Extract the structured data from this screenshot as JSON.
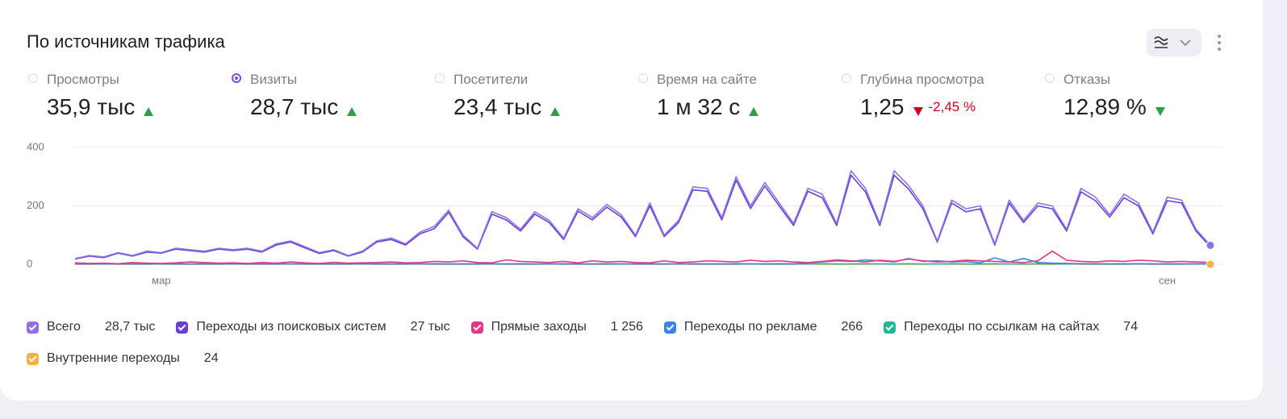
{
  "header": {
    "title": "По источникам трафика"
  },
  "metrics": [
    {
      "label": "Просмотры",
      "value": "35,9 тыс",
      "trend": "up",
      "trend_color": "#2ea043",
      "selected": false
    },
    {
      "label": "Визиты",
      "value": "28,7 тыс",
      "trend": "up",
      "trend_color": "#2ea043",
      "selected": true
    },
    {
      "label": "Посетители",
      "value": "23,4 тыс",
      "trend": "up",
      "trend_color": "#2ea043",
      "selected": false
    },
    {
      "label": "Время на сайте",
      "value": "1 м 32 с",
      "trend": "up",
      "trend_color": "#2ea043",
      "selected": false
    },
    {
      "label": "Глубина просмотра",
      "value": "1,25",
      "trend": "down",
      "trend_color": "#d0021b",
      "change": "-2,45 %",
      "selected": false
    },
    {
      "label": "Отказы",
      "value": "12,89 %",
      "trend": "down",
      "trend_color": "#2ea043",
      "selected": false
    }
  ],
  "chart_data": {
    "type": "line",
    "categories": [
      null,
      null,
      null,
      null,
      null,
      null,
      "мар",
      null,
      null,
      null,
      null,
      null,
      null,
      null,
      null,
      null,
      null,
      null,
      null,
      null,
      null,
      null,
      null,
      null,
      null,
      null,
      null,
      null,
      null,
      null,
      null,
      null,
      null,
      null,
      null,
      null,
      null,
      null,
      null,
      null,
      null,
      null,
      null,
      null,
      null,
      null,
      null,
      null,
      null,
      null,
      null,
      null,
      null,
      null,
      null,
      null,
      null,
      null,
      null,
      null,
      null,
      null,
      null,
      null,
      null,
      null,
      null,
      null,
      null,
      null,
      null,
      null,
      null,
      null,
      null,
      null,
      "сен",
      null,
      null,
      null
    ],
    "ylim": [
      0,
      400
    ],
    "yticks": [
      0,
      200,
      400
    ],
    "grid": true,
    "series": [
      {
        "name": "Всего",
        "total": "28,7 тыс",
        "color": "#8e72e6",
        "end_marker": true,
        "values": [
          20,
          30,
          25,
          40,
          30,
          45,
          40,
          55,
          50,
          45,
          55,
          50,
          55,
          45,
          70,
          80,
          60,
          40,
          50,
          30,
          45,
          80,
          90,
          70,
          110,
          130,
          185,
          100,
          55,
          180,
          160,
          120,
          180,
          150,
          90,
          190,
          160,
          205,
          170,
          100,
          210,
          100,
          150,
          265,
          260,
          160,
          300,
          200,
          280,
          210,
          140,
          260,
          240,
          140,
          320,
          260,
          140,
          320,
          270,
          200,
          80,
          220,
          190,
          200,
          70,
          220,
          150,
          210,
          200,
          120,
          260,
          230,
          170,
          240,
          210,
          110,
          230,
          220,
          120,
          65
        ]
      },
      {
        "name": "Переходы из поисковых систем",
        "total": "27 тыс",
        "color": "#6a3fd6",
        "end_marker": false,
        "values": [
          18,
          28,
          23,
          38,
          28,
          42,
          38,
          52,
          47,
          42,
          52,
          47,
          52,
          42,
          66,
          76,
          56,
          37,
          47,
          28,
          42,
          76,
          85,
          66,
          104,
          122,
          178,
          94,
          52,
          172,
          152,
          114,
          172,
          143,
          85,
          182,
          152,
          196,
          162,
          95,
          200,
          95,
          143,
          255,
          250,
          152,
          288,
          191,
          268,
          200,
          133,
          250,
          228,
          133,
          305,
          248,
          133,
          305,
          258,
          190,
          76,
          210,
          180,
          190,
          66,
          210,
          143,
          200,
          190,
          114,
          248,
          218,
          162,
          228,
          200,
          104,
          218,
          210,
          114,
          60
        ]
      },
      {
        "name": "Прямые заходы",
        "total": "1 256",
        "color": "#e8358a",
        "end_marker": false,
        "values": [
          5,
          3,
          4,
          2,
          6,
          4,
          3,
          5,
          8,
          6,
          4,
          5,
          3,
          6,
          4,
          8,
          5,
          3,
          7,
          4,
          5,
          6,
          8,
          5,
          6,
          10,
          8,
          12,
          6,
          5,
          15,
          10,
          8,
          6,
          10,
          5,
          12,
          8,
          10,
          6,
          5,
          12,
          6,
          8,
          12,
          10,
          8,
          14,
          10,
          12,
          8,
          6,
          10,
          15,
          12,
          8,
          14,
          10,
          18,
          12,
          8,
          10,
          14,
          12,
          10,
          8,
          6,
          12,
          45,
          14,
          10,
          8,
          12,
          10,
          14,
          12,
          8,
          10,
          8,
          6
        ]
      },
      {
        "name": "Переходы по рекламе",
        "total": "266",
        "color": "#3b82e8",
        "end_marker": false,
        "values": [
          1,
          1,
          1,
          1,
          1,
          1,
          1,
          1,
          1,
          1,
          1,
          1,
          1,
          1,
          1,
          1,
          1,
          1,
          1,
          1,
          1,
          1,
          1,
          1,
          1,
          1,
          1,
          1,
          1,
          1,
          1,
          1,
          1,
          1,
          1,
          1,
          1,
          1,
          1,
          1,
          1,
          1,
          1,
          1,
          1,
          1,
          1,
          1,
          1,
          1,
          2,
          5,
          8,
          12,
          10,
          15,
          12,
          8,
          20,
          10,
          12,
          8,
          10,
          5,
          22,
          8,
          20,
          6,
          4,
          3,
          2,
          2,
          1,
          1,
          2,
          1,
          1,
          1,
          2,
          1
        ]
      },
      {
        "name": "Переходы по ссылкам на сайтах",
        "total": "74",
        "color": "#1fb89a",
        "end_marker": false,
        "values": [
          1,
          2,
          1,
          2,
          1,
          1,
          2,
          1,
          1,
          2,
          1,
          2,
          1,
          1,
          2,
          1,
          1,
          2,
          1,
          1,
          2,
          1,
          2,
          1,
          1,
          2,
          1,
          1,
          2,
          1,
          1,
          2,
          1,
          1,
          2,
          1,
          1,
          2,
          1,
          1,
          2,
          1,
          1,
          2,
          1,
          1,
          2,
          1,
          1,
          2,
          1,
          1,
          2,
          1,
          1,
          2,
          1,
          1,
          2,
          1,
          1,
          2,
          1,
          1,
          2,
          1,
          1,
          2,
          1,
          1,
          2,
          1,
          1,
          2,
          1,
          1,
          2,
          1,
          1,
          1
        ]
      },
      {
        "name": "Внутренние переходы",
        "total": "24",
        "color": "#f5b041",
        "end_marker": true,
        "values": [
          0,
          0,
          1,
          0,
          0,
          0,
          1,
          0,
          0,
          0,
          0,
          1,
          0,
          0,
          0,
          1,
          0,
          0,
          0,
          0,
          1,
          0,
          0,
          0,
          1,
          0,
          0,
          0,
          0,
          1,
          0,
          0,
          0,
          1,
          0,
          0,
          0,
          0,
          1,
          0,
          0,
          0,
          1,
          0,
          0,
          0,
          0,
          1,
          0,
          0,
          0,
          1,
          0,
          0,
          0,
          0,
          1,
          0,
          0,
          0,
          1,
          0,
          0,
          0,
          0,
          1,
          0,
          0,
          0,
          1,
          0,
          0,
          0,
          0,
          1,
          0,
          0,
          0,
          1,
          0
        ]
      }
    ]
  }
}
